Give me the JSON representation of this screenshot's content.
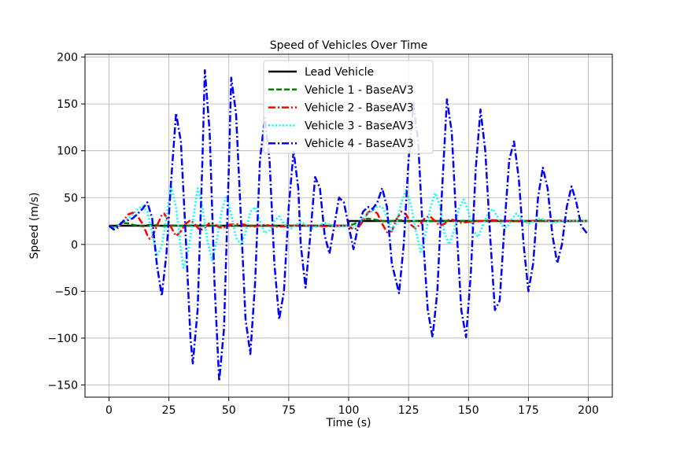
{
  "chart_data": {
    "type": "line",
    "title": "Speed of Vehicles Over Time",
    "xlabel": "Time (s)",
    "ylabel": "Speed (m/s)",
    "xlim": [
      -10,
      210
    ],
    "ylim": [
      -163,
      203
    ],
    "xticks": [
      0,
      25,
      50,
      75,
      100,
      125,
      150,
      175,
      200
    ],
    "yticks": [
      -150,
      -100,
      -50,
      0,
      50,
      100,
      150,
      200
    ],
    "grid": true,
    "legend_position": "upper-center",
    "series": [
      {
        "name": "Lead Vehicle",
        "color": "#000000",
        "style": "solid",
        "points": [
          [
            0,
            20
          ],
          [
            99.8,
            20
          ],
          [
            100,
            25
          ],
          [
            200,
            25
          ]
        ]
      },
      {
        "name": "Vehicle 1 - BaseAV3",
        "color": "#008000",
        "style": "dashed",
        "points": [
          [
            0,
            20
          ],
          [
            2,
            18.5
          ],
          [
            4,
            20.5
          ],
          [
            6,
            23
          ],
          [
            8,
            22.5
          ],
          [
            10,
            21
          ],
          [
            12,
            20
          ],
          [
            14,
            19.5
          ],
          [
            16,
            20.5
          ],
          [
            18,
            21
          ],
          [
            20,
            20.5
          ],
          [
            22,
            19.5
          ],
          [
            24,
            19.8
          ],
          [
            26,
            20.3
          ],
          [
            28,
            20.2
          ],
          [
            30,
            19.8
          ],
          [
            34,
            20.2
          ],
          [
            38,
            19.9
          ],
          [
            42,
            20.1
          ],
          [
            50,
            20
          ],
          [
            60,
            20
          ],
          [
            80,
            20
          ],
          [
            100,
            20
          ],
          [
            102,
            21.5
          ],
          [
            104,
            24
          ],
          [
            106,
            26.5
          ],
          [
            108,
            27.5
          ],
          [
            110,
            27
          ],
          [
            112,
            26
          ],
          [
            114,
            25
          ],
          [
            116,
            24.5
          ],
          [
            118,
            25
          ],
          [
            120,
            25.5
          ],
          [
            122,
            25.8
          ],
          [
            124,
            25.3
          ],
          [
            126,
            24.8
          ],
          [
            130,
            25.2
          ],
          [
            134,
            24.9
          ],
          [
            140,
            25.1
          ],
          [
            150,
            25
          ],
          [
            200,
            25
          ]
        ]
      },
      {
        "name": "Vehicle 2 - BaseAV3",
        "color": "#ff0000",
        "style": "dashdot",
        "points": [
          [
            0,
            20
          ],
          [
            2,
            16
          ],
          [
            4,
            18
          ],
          [
            6,
            25
          ],
          [
            8,
            32
          ],
          [
            10,
            34
          ],
          [
            12,
            30
          ],
          [
            14,
            22
          ],
          [
            16,
            10
          ],
          [
            17,
            6
          ],
          [
            18,
            8
          ],
          [
            20,
            20
          ],
          [
            22,
            31
          ],
          [
            23,
            33
          ],
          [
            24,
            29
          ],
          [
            26,
            18
          ],
          [
            28,
            9
          ],
          [
            30,
            14
          ],
          [
            32,
            22
          ],
          [
            34,
            26
          ],
          [
            36,
            21
          ],
          [
            38,
            15
          ],
          [
            40,
            18
          ],
          [
            42,
            23
          ],
          [
            44,
            22
          ],
          [
            46,
            18
          ],
          [
            48,
            18
          ],
          [
            50,
            21
          ],
          [
            55,
            22
          ],
          [
            60,
            19
          ],
          [
            65,
            21
          ],
          [
            70,
            19
          ],
          [
            80,
            20.5
          ],
          [
            90,
            19.5
          ],
          [
            100,
            20
          ],
          [
            102,
            16
          ],
          [
            104,
            18
          ],
          [
            106,
            25
          ],
          [
            108,
            34
          ],
          [
            110,
            37
          ],
          [
            112,
            33
          ],
          [
            114,
            22
          ],
          [
            116,
            13
          ],
          [
            118,
            14
          ],
          [
            120,
            27
          ],
          [
            122,
            35
          ],
          [
            124,
            32
          ],
          [
            126,
            21
          ],
          [
            128,
            17
          ],
          [
            130,
            22
          ],
          [
            132,
            29
          ],
          [
            134,
            30
          ],
          [
            136,
            25
          ],
          [
            138,
            20
          ],
          [
            140,
            22
          ],
          [
            142,
            27
          ],
          [
            144,
            26
          ],
          [
            146,
            23
          ],
          [
            150,
            24
          ],
          [
            160,
            26
          ],
          [
            170,
            24.5
          ],
          [
            180,
            25.5
          ],
          [
            200,
            25
          ]
        ]
      },
      {
        "name": "Vehicle 3 - BaseAV3",
        "color": "#00ffff",
        "style": "dotted",
        "points": [
          [
            0,
            20
          ],
          [
            2,
            17
          ],
          [
            4,
            20
          ],
          [
            6,
            26
          ],
          [
            8,
            28
          ],
          [
            10,
            32
          ],
          [
            12,
            38
          ],
          [
            14,
            41
          ],
          [
            16,
            35
          ],
          [
            18,
            12
          ],
          [
            20,
            -12
          ],
          [
            22,
            -2
          ],
          [
            24,
            30
          ],
          [
            26,
            62
          ],
          [
            28,
            40
          ],
          [
            30,
            -5
          ],
          [
            31,
            -25
          ],
          [
            33,
            -8
          ],
          [
            35,
            25
          ],
          [
            37,
            60
          ],
          [
            39,
            40
          ],
          [
            41,
            5
          ],
          [
            43,
            -17
          ],
          [
            45,
            5
          ],
          [
            47,
            35
          ],
          [
            49,
            52
          ],
          [
            51,
            32
          ],
          [
            53,
            7
          ],
          [
            55,
            0
          ],
          [
            57,
            12
          ],
          [
            59,
            35
          ],
          [
            61,
            40
          ],
          [
            63,
            25
          ],
          [
            65,
            12
          ],
          [
            67,
            15
          ],
          [
            69,
            25
          ],
          [
            71,
            30
          ],
          [
            73,
            22
          ],
          [
            76,
            17
          ],
          [
            80,
            24
          ],
          [
            85,
            17
          ],
          [
            90,
            23
          ],
          [
            95,
            19
          ],
          [
            100,
            20
          ],
          [
            102,
            18
          ],
          [
            104,
            22
          ],
          [
            106,
            28
          ],
          [
            108,
            33
          ],
          [
            110,
            36
          ],
          [
            112,
            41
          ],
          [
            114,
            40
          ],
          [
            116,
            30
          ],
          [
            118,
            15
          ],
          [
            120,
            22
          ],
          [
            122,
            45
          ],
          [
            124,
            58
          ],
          [
            126,
            42
          ],
          [
            128,
            15
          ],
          [
            130,
            -8
          ],
          [
            132,
            10
          ],
          [
            134,
            38
          ],
          [
            136,
            55
          ],
          [
            138,
            42
          ],
          [
            140,
            12
          ],
          [
            142,
            0
          ],
          [
            144,
            15
          ],
          [
            146,
            38
          ],
          [
            148,
            48
          ],
          [
            150,
            35
          ],
          [
            152,
            15
          ],
          [
            154,
            8
          ],
          [
            156,
            20
          ],
          [
            158,
            32
          ],
          [
            160,
            38
          ],
          [
            162,
            30
          ],
          [
            164,
            20
          ],
          [
            166,
            18
          ],
          [
            168,
            27
          ],
          [
            170,
            33
          ],
          [
            172,
            27
          ],
          [
            175,
            22
          ],
          [
            180,
            28
          ],
          [
            185,
            23
          ],
          [
            190,
            26
          ],
          [
            200,
            25
          ]
        ]
      },
      {
        "name": "Vehicle 4 - BaseAV3",
        "color": "#0000ff",
        "style": "dashdot",
        "points": [
          [
            0,
            20
          ],
          [
            2,
            16
          ],
          [
            4,
            20
          ],
          [
            6,
            25
          ],
          [
            8,
            26
          ],
          [
            10,
            28
          ],
          [
            12,
            33
          ],
          [
            14,
            38
          ],
          [
            16,
            45
          ],
          [
            18,
            28
          ],
          [
            20,
            -22
          ],
          [
            22,
            -55
          ],
          [
            24,
            -10
          ],
          [
            26,
            70
          ],
          [
            28,
            140
          ],
          [
            30,
            110
          ],
          [
            32,
            10
          ],
          [
            34,
            -100
          ],
          [
            35,
            -127
          ],
          [
            37,
            -70
          ],
          [
            39,
            90
          ],
          [
            40,
            186
          ],
          [
            42,
            120
          ],
          [
            44,
            -40
          ],
          [
            46,
            -146
          ],
          [
            48,
            -90
          ],
          [
            50,
            80
          ],
          [
            51,
            178
          ],
          [
            53,
            140
          ],
          [
            55,
            30
          ],
          [
            57,
            -80
          ],
          [
            59,
            -117
          ],
          [
            61,
            -40
          ],
          [
            63,
            90
          ],
          [
            65,
            135
          ],
          [
            67,
            90
          ],
          [
            69,
            -20
          ],
          [
            71,
            -80
          ],
          [
            73,
            -50
          ],
          [
            75,
            40
          ],
          [
            77,
            100
          ],
          [
            79,
            60
          ],
          [
            80,
            0
          ],
          [
            82,
            -46
          ],
          [
            84,
            10
          ],
          [
            86,
            72
          ],
          [
            88,
            60
          ],
          [
            90,
            10
          ],
          [
            92,
            -10
          ],
          [
            94,
            20
          ],
          [
            96,
            50
          ],
          [
            98,
            45
          ],
          [
            100,
            20
          ],
          [
            102,
            -5
          ],
          [
            104,
            20
          ],
          [
            106,
            35
          ],
          [
            108,
            40
          ],
          [
            110,
            38
          ],
          [
            112,
            45
          ],
          [
            114,
            60
          ],
          [
            116,
            40
          ],
          [
            118,
            -20
          ],
          [
            121,
            -52
          ],
          [
            123,
            0
          ],
          [
            125,
            90
          ],
          [
            127,
            150
          ],
          [
            129,
            110
          ],
          [
            131,
            10
          ],
          [
            133,
            -70
          ],
          [
            135,
            -99
          ],
          [
            137,
            -50
          ],
          [
            139,
            60
          ],
          [
            141,
            155
          ],
          [
            143,
            120
          ],
          [
            145,
            20
          ],
          [
            147,
            -70
          ],
          [
            149,
            -99
          ],
          [
            151,
            -30
          ],
          [
            153,
            80
          ],
          [
            155,
            144
          ],
          [
            157,
            100
          ],
          [
            159,
            10
          ],
          [
            161,
            -70
          ],
          [
            163,
            -60
          ],
          [
            165,
            20
          ],
          [
            167,
            90
          ],
          [
            169,
            110
          ],
          [
            171,
            70
          ],
          [
            173,
            0
          ],
          [
            175,
            -50
          ],
          [
            177,
            -20
          ],
          [
            179,
            50
          ],
          [
            181,
            82
          ],
          [
            183,
            60
          ],
          [
            185,
            10
          ],
          [
            187,
            -20
          ],
          [
            189,
            0
          ],
          [
            191,
            40
          ],
          [
            193,
            62
          ],
          [
            195,
            45
          ],
          [
            197,
            20
          ],
          [
            200,
            10
          ]
        ]
      }
    ]
  }
}
